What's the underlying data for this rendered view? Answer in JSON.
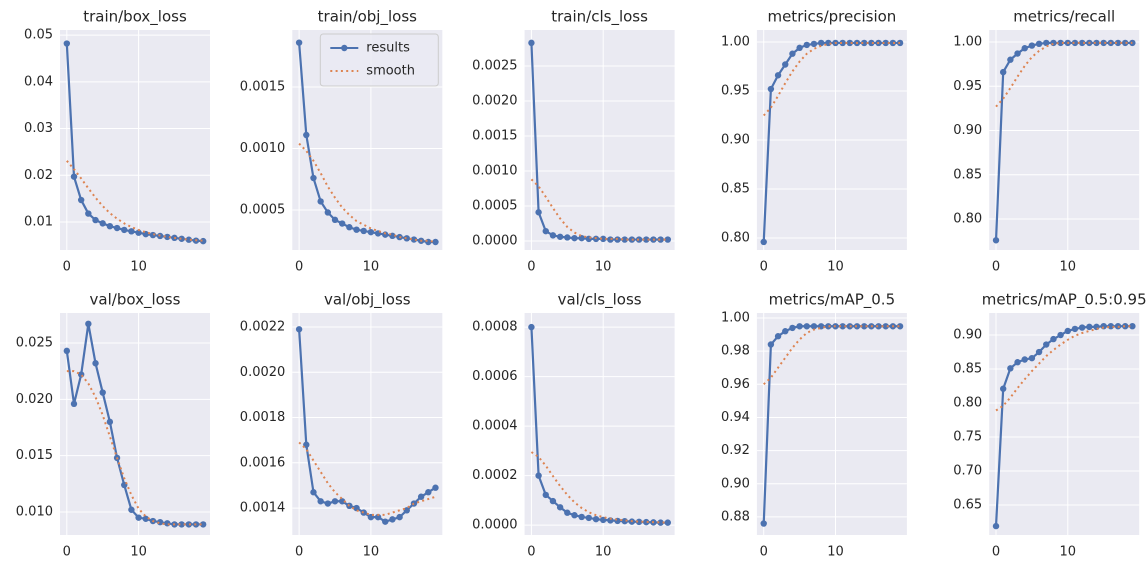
{
  "chart_data": [
    {
      "type": "line",
      "title": "train/box_loss",
      "x": [
        0,
        1,
        2,
        3,
        4,
        5,
        6,
        7,
        8,
        9,
        10,
        11,
        12,
        13,
        14,
        15,
        16,
        17,
        18,
        19
      ],
      "series": [
        {
          "name": "results",
          "color": "#4c72b0",
          "linestyle": "solid",
          "marker": true,
          "values": [
            0.0482,
            0.0197,
            0.0147,
            0.0118,
            0.0104,
            0.0097,
            0.0091,
            0.0087,
            0.0083,
            0.008,
            0.0077,
            0.0074,
            0.0072,
            0.007,
            0.0068,
            0.0066,
            0.0064,
            0.0062,
            0.006,
            0.0059
          ]
        },
        {
          "name": "smooth",
          "color": "#dd8452",
          "linestyle": "dotted",
          "marker": false,
          "values": [
            0.0231,
            0.0213,
            0.0193,
            0.0172,
            0.0152,
            0.0134,
            0.0119,
            0.0107,
            0.0097,
            0.0089,
            0.0083,
            0.0078,
            0.0074,
            0.0071,
            0.0068,
            0.0066,
            0.0064,
            0.0062,
            0.0061,
            0.006
          ]
        }
      ],
      "xlim": [
        -0.95,
        19.95
      ],
      "xticks": [
        0,
        10
      ],
      "ylim": [
        0.004,
        0.0511
      ],
      "yticks": [
        0.01,
        0.02,
        0.03,
        0.04,
        0.05
      ],
      "grid": true
    },
    {
      "type": "line",
      "title": "train/obj_loss",
      "x": [
        0,
        1,
        2,
        3,
        4,
        5,
        6,
        7,
        8,
        9,
        10,
        11,
        12,
        13,
        14,
        15,
        16,
        17,
        18,
        19
      ],
      "series": [
        {
          "name": "results",
          "color": "#4c72b0",
          "linestyle": "solid",
          "marker": true,
          "values": [
            0.00186,
            0.00111,
            0.00076,
            0.00057,
            0.00048,
            0.00042,
            0.00039,
            0.00036,
            0.00034,
            0.00033,
            0.00032,
            0.00031,
            0.0003,
            0.00029,
            0.00028,
            0.00027,
            0.00026,
            0.00025,
            0.00024,
            0.00024
          ]
        },
        {
          "name": "smooth",
          "color": "#dd8452",
          "linestyle": "dotted",
          "marker": false,
          "values": [
            0.00104,
            0.00098,
            0.0009,
            0.0008,
            0.00069,
            0.0006,
            0.00052,
            0.00046,
            0.00041,
            0.00038,
            0.00035,
            0.00033,
            0.00031,
            0.0003,
            0.00028,
            0.00027,
            0.00026,
            0.00025,
            0.00025,
            0.00024
          ]
        }
      ],
      "xlim": [
        -0.95,
        19.95
      ],
      "xticks": [
        0,
        10
      ],
      "ylim": [
        0.000175,
        0.001963
      ],
      "yticks": [
        0.0005,
        {
          "value": 0.001,
          "label": "0.0010"
        },
        0.0015
      ],
      "grid": true,
      "legend": "upper right"
    },
    {
      "type": "line",
      "title": "train/cls_loss",
      "x": [
        0,
        1,
        2,
        3,
        4,
        5,
        6,
        7,
        8,
        9,
        10,
        11,
        12,
        13,
        14,
        15,
        16,
        17,
        18,
        19
      ],
      "series": [
        {
          "name": "results",
          "color": "#4c72b0",
          "linestyle": "solid",
          "marker": true,
          "values": [
            0.00283,
            0.00041,
            0.00014,
            8e-05,
            6e-05,
            5e-05,
            4e-05,
            4e-05,
            3e-05,
            3e-05,
            3e-05,
            2e-05,
            2e-05,
            2e-05,
            2e-05,
            2e-05,
            2e-05,
            2e-05,
            2e-05,
            2e-05
          ]
        },
        {
          "name": "smooth",
          "color": "#dd8452",
          "linestyle": "dotted",
          "marker": false,
          "values": [
            0.00088,
            0.00078,
            0.00063,
            0.00047,
            0.00032,
            0.0002,
            0.00012,
            7e-05,
            5e-05,
            4e-05,
            3e-05,
            3e-05,
            3e-05,
            2e-05,
            2e-05,
            2e-05,
            2e-05,
            2e-05,
            2e-05,
            2e-05
          ]
        }
      ],
      "xlim": [
        -0.95,
        19.95
      ],
      "xticks": [
        0,
        10
      ],
      "ylim": [
        -0.000129,
        0.003014
      ],
      "yticks": [
        {
          "value": 0,
          "label": "0.0000"
        },
        0.0005,
        {
          "value": 0.001,
          "label": "0.0010"
        },
        0.0015,
        {
          "value": 0.002,
          "label": "0.0020"
        },
        0.0025
      ],
      "grid": true
    },
    {
      "type": "line",
      "title": "metrics/precision",
      "x": [
        0,
        1,
        2,
        3,
        4,
        5,
        6,
        7,
        8,
        9,
        10,
        11,
        12,
        13,
        14,
        15,
        16,
        17,
        18,
        19
      ],
      "series": [
        {
          "name": "results",
          "color": "#4c72b0",
          "linestyle": "solid",
          "marker": true,
          "values": [
            0.796,
            0.952,
            0.966,
            0.977,
            0.988,
            0.994,
            0.997,
            0.998,
            0.999,
            0.999,
            0.999,
            0.999,
            0.999,
            0.999,
            0.999,
            0.999,
            0.999,
            0.999,
            0.999,
            0.999
          ]
        },
        {
          "name": "smooth",
          "color": "#dd8452",
          "linestyle": "dotted",
          "marker": false,
          "values": [
            0.925,
            0.933,
            0.945,
            0.958,
            0.97,
            0.98,
            0.988,
            0.993,
            0.996,
            0.998,
            0.999,
            0.999,
            0.999,
            0.999,
            0.999,
            0.999,
            0.999,
            0.999,
            0.999,
            0.999
          ]
        }
      ],
      "xlim": [
        -0.95,
        19.95
      ],
      "xticks": [
        0,
        10
      ],
      "ylim": [
        0.7878,
        1.0122
      ],
      "yticks": [
        {
          "value": 0.8,
          "label": "0.80"
        },
        0.85,
        {
          "value": 0.9,
          "label": "0.90"
        },
        0.95,
        {
          "value": 1,
          "label": "1.00"
        }
      ],
      "grid": true
    },
    {
      "type": "line",
      "title": "metrics/recall",
      "x": [
        0,
        1,
        2,
        3,
        4,
        5,
        6,
        7,
        8,
        9,
        10,
        11,
        12,
        13,
        14,
        15,
        16,
        17,
        18,
        19
      ],
      "series": [
        {
          "name": "results",
          "color": "#4c72b0",
          "linestyle": "solid",
          "marker": true,
          "values": [
            0.776,
            0.966,
            0.98,
            0.987,
            0.993,
            0.996,
            0.998,
            0.999,
            0.999,
            0.999,
            0.999,
            0.999,
            0.999,
            0.999,
            0.999,
            0.999,
            0.999,
            0.999,
            0.999,
            0.999
          ]
        },
        {
          "name": "smooth",
          "color": "#dd8452",
          "linestyle": "dotted",
          "marker": false,
          "values": [
            0.927,
            0.936,
            0.948,
            0.961,
            0.973,
            0.983,
            0.99,
            0.995,
            0.998,
            0.999,
            0.999,
            0.999,
            0.999,
            0.999,
            0.999,
            0.999,
            0.999,
            0.999,
            0.999,
            0.999
          ]
        }
      ],
      "xlim": [
        -0.95,
        19.95
      ],
      "xticks": [
        0,
        10
      ],
      "ylim": [
        0.765,
        1.0136
      ],
      "yticks": [
        {
          "value": 0.8,
          "label": "0.80"
        },
        0.85,
        {
          "value": 0.9,
          "label": "0.90"
        },
        0.95,
        {
          "value": 1,
          "label": "1.00"
        }
      ],
      "grid": true
    },
    {
      "type": "line",
      "title": "val/box_loss",
      "x": [
        0,
        1,
        2,
        3,
        4,
        5,
        6,
        7,
        8,
        9,
        10,
        11,
        12,
        13,
        14,
        15,
        16,
        17,
        18,
        19
      ],
      "series": [
        {
          "name": "results",
          "color": "#4c72b0",
          "linestyle": "solid",
          "marker": true,
          "values": [
            0.0243,
            0.0196,
            0.0222,
            0.0267,
            0.0232,
            0.0206,
            0.018,
            0.0148,
            0.0124,
            0.0102,
            0.0095,
            0.0094,
            0.0092,
            0.0091,
            0.009,
            0.0089,
            0.0089,
            0.0089,
            0.0089,
            0.0089
          ]
        },
        {
          "name": "smooth",
          "color": "#dd8452",
          "linestyle": "dotted",
          "marker": false,
          "values": [
            0.0225,
            0.0225,
            0.0222,
            0.0214,
            0.0202,
            0.0186,
            0.0167,
            0.0148,
            0.013,
            0.0115,
            0.0103,
            0.0096,
            0.0092,
            0.009,
            0.0089,
            0.0089,
            0.0089,
            0.0089,
            0.0089,
            0.0089
          ]
        }
      ],
      "xlim": [
        -0.95,
        19.95
      ],
      "xticks": [
        0,
        10
      ],
      "ylim": [
        0.00796,
        0.02766
      ],
      "yticks": [
        {
          "value": 0.01,
          "label": "0.010"
        },
        0.015,
        {
          "value": 0.02,
          "label": "0.020"
        },
        0.025
      ],
      "grid": true
    },
    {
      "type": "line",
      "title": "val/obj_loss",
      "x": [
        0,
        1,
        2,
        3,
        4,
        5,
        6,
        7,
        8,
        9,
        10,
        11,
        12,
        13,
        14,
        15,
        16,
        17,
        18,
        19
      ],
      "series": [
        {
          "name": "results",
          "color": "#4c72b0",
          "linestyle": "solid",
          "marker": true,
          "values": [
            0.00219,
            0.00168,
            0.00147,
            0.00143,
            0.00142,
            0.00143,
            0.00143,
            0.00141,
            0.0014,
            0.00138,
            0.00136,
            0.00136,
            0.00134,
            0.00135,
            0.00136,
            0.00139,
            0.00142,
            0.00145,
            0.00147,
            0.00149
          ]
        },
        {
          "name": "smooth",
          "color": "#dd8452",
          "linestyle": "dotted",
          "marker": false,
          "values": [
            0.00169,
            0.00166,
            0.00161,
            0.00156,
            0.00151,
            0.00147,
            0.00144,
            0.00141,
            0.00139,
            0.00138,
            0.00137,
            0.00137,
            0.00137,
            0.00138,
            0.00139,
            0.0014,
            0.00142,
            0.00143,
            0.00144,
            0.00145
          ]
        }
      ],
      "xlim": [
        -0.95,
        19.95
      ],
      "xticks": [
        0,
        10
      ],
      "ylim": [
        0.001281,
        0.002262
      ],
      "yticks": [
        0.0014,
        0.0016,
        0.0018,
        {
          "value": 0.002,
          "label": "0.0020"
        },
        0.0022
      ],
      "grid": true
    },
    {
      "type": "line",
      "title": "val/cls_loss",
      "x": [
        0,
        1,
        2,
        3,
        4,
        5,
        6,
        7,
        8,
        9,
        10,
        11,
        12,
        13,
        14,
        15,
        16,
        17,
        18,
        19
      ],
      "series": [
        {
          "name": "results",
          "color": "#4c72b0",
          "linestyle": "solid",
          "marker": true,
          "values": [
            0.0008,
            0.0002,
            0.000122,
            9.7e-05,
            7.2e-05,
            5e-05,
            4e-05,
            3.3e-05,
            2.9e-05,
            2.4e-05,
            2.1e-05,
            1.9e-05,
            1.7e-05,
            1.6e-05,
            1.4e-05,
            1.3e-05,
            1.2e-05,
            1.1e-05,
            1e-05,
            1e-05
          ]
        },
        {
          "name": "smooth",
          "color": "#dd8452",
          "linestyle": "dotted",
          "marker": false,
          "values": [
            0.000295,
            0.000275,
            0.00024,
            0.000198,
            0.000158,
            0.000122,
            9.2e-05,
            6.9e-05,
            5.2e-05,
            4e-05,
            3.2e-05,
            2.6e-05,
            2.2e-05,
            1.9e-05,
            1.6e-05,
            1.4e-05,
            1.3e-05,
            1.2e-05,
            1.1e-05,
            1e-05
          ]
        }
      ],
      "xlim": [
        -0.95,
        19.95
      ],
      "xticks": [
        0,
        10
      ],
      "ylim": [
        -4e-05,
        0.000857
      ],
      "yticks": [
        {
          "value": 0,
          "label": "0.0000"
        },
        0.0002,
        0.0004,
        0.0006,
        0.0008
      ],
      "grid": true
    },
    {
      "type": "line",
      "title": "metrics/mAP_0.5",
      "x": [
        0,
        1,
        2,
        3,
        4,
        5,
        6,
        7,
        8,
        9,
        10,
        11,
        12,
        13,
        14,
        15,
        16,
        17,
        18,
        19
      ],
      "series": [
        {
          "name": "results",
          "color": "#4c72b0",
          "linestyle": "solid",
          "marker": true,
          "values": [
            0.876,
            0.984,
            0.989,
            0.992,
            0.994,
            0.995,
            0.995,
            0.995,
            0.995,
            0.995,
            0.995,
            0.995,
            0.995,
            0.995,
            0.995,
            0.995,
            0.995,
            0.995,
            0.995,
            0.995
          ]
        },
        {
          "name": "smooth",
          "color": "#dd8452",
          "linestyle": "dotted",
          "marker": false,
          "values": [
            0.96,
            0.964,
            0.97,
            0.976,
            0.982,
            0.987,
            0.991,
            0.993,
            0.994,
            0.995,
            0.995,
            0.995,
            0.995,
            0.995,
            0.995,
            0.995,
            0.995,
            0.995,
            0.995,
            0.995
          ]
        }
      ],
      "xlim": [
        -0.95,
        19.95
      ],
      "xticks": [
        0,
        10
      ],
      "ylim": [
        0.8691,
        1.003
      ],
      "yticks": [
        0.88,
        {
          "value": 0.9,
          "label": "0.90"
        },
        0.92,
        0.94,
        0.96,
        0.98,
        {
          "value": 1,
          "label": "1.00"
        }
      ],
      "grid": true
    },
    {
      "type": "line",
      "title": "metrics/mAP_0.5:0.95",
      "x": [
        0,
        1,
        2,
        3,
        4,
        5,
        6,
        7,
        8,
        9,
        10,
        11,
        12,
        13,
        14,
        15,
        16,
        17,
        18,
        19
      ],
      "series": [
        {
          "name": "results",
          "color": "#4c72b0",
          "linestyle": "solid",
          "marker": true,
          "values": [
            0.619,
            0.821,
            0.851,
            0.86,
            0.864,
            0.866,
            0.875,
            0.886,
            0.894,
            0.9,
            0.906,
            0.909,
            0.911,
            0.912,
            0.912,
            0.913,
            0.913,
            0.913,
            0.913,
            0.913
          ]
        },
        {
          "name": "smooth",
          "color": "#dd8452",
          "linestyle": "dotted",
          "marker": false,
          "values": [
            0.789,
            0.796,
            0.808,
            0.822,
            0.835,
            0.847,
            0.858,
            0.869,
            0.878,
            0.886,
            0.893,
            0.899,
            0.903,
            0.906,
            0.909,
            0.911,
            0.912,
            0.912,
            0.913,
            0.913
          ]
        }
      ],
      "xlim": [
        -0.95,
        19.95
      ],
      "xticks": [
        0,
        10
      ],
      "ylim": [
        0.6059,
        0.9324
      ],
      "yticks": [
        0.65,
        {
          "value": 0.7,
          "label": "0.70"
        },
        0.75,
        {
          "value": 0.8,
          "label": "0.80"
        },
        0.85,
        {
          "value": 0.9,
          "label": "0.90"
        }
      ],
      "grid": true
    }
  ]
}
